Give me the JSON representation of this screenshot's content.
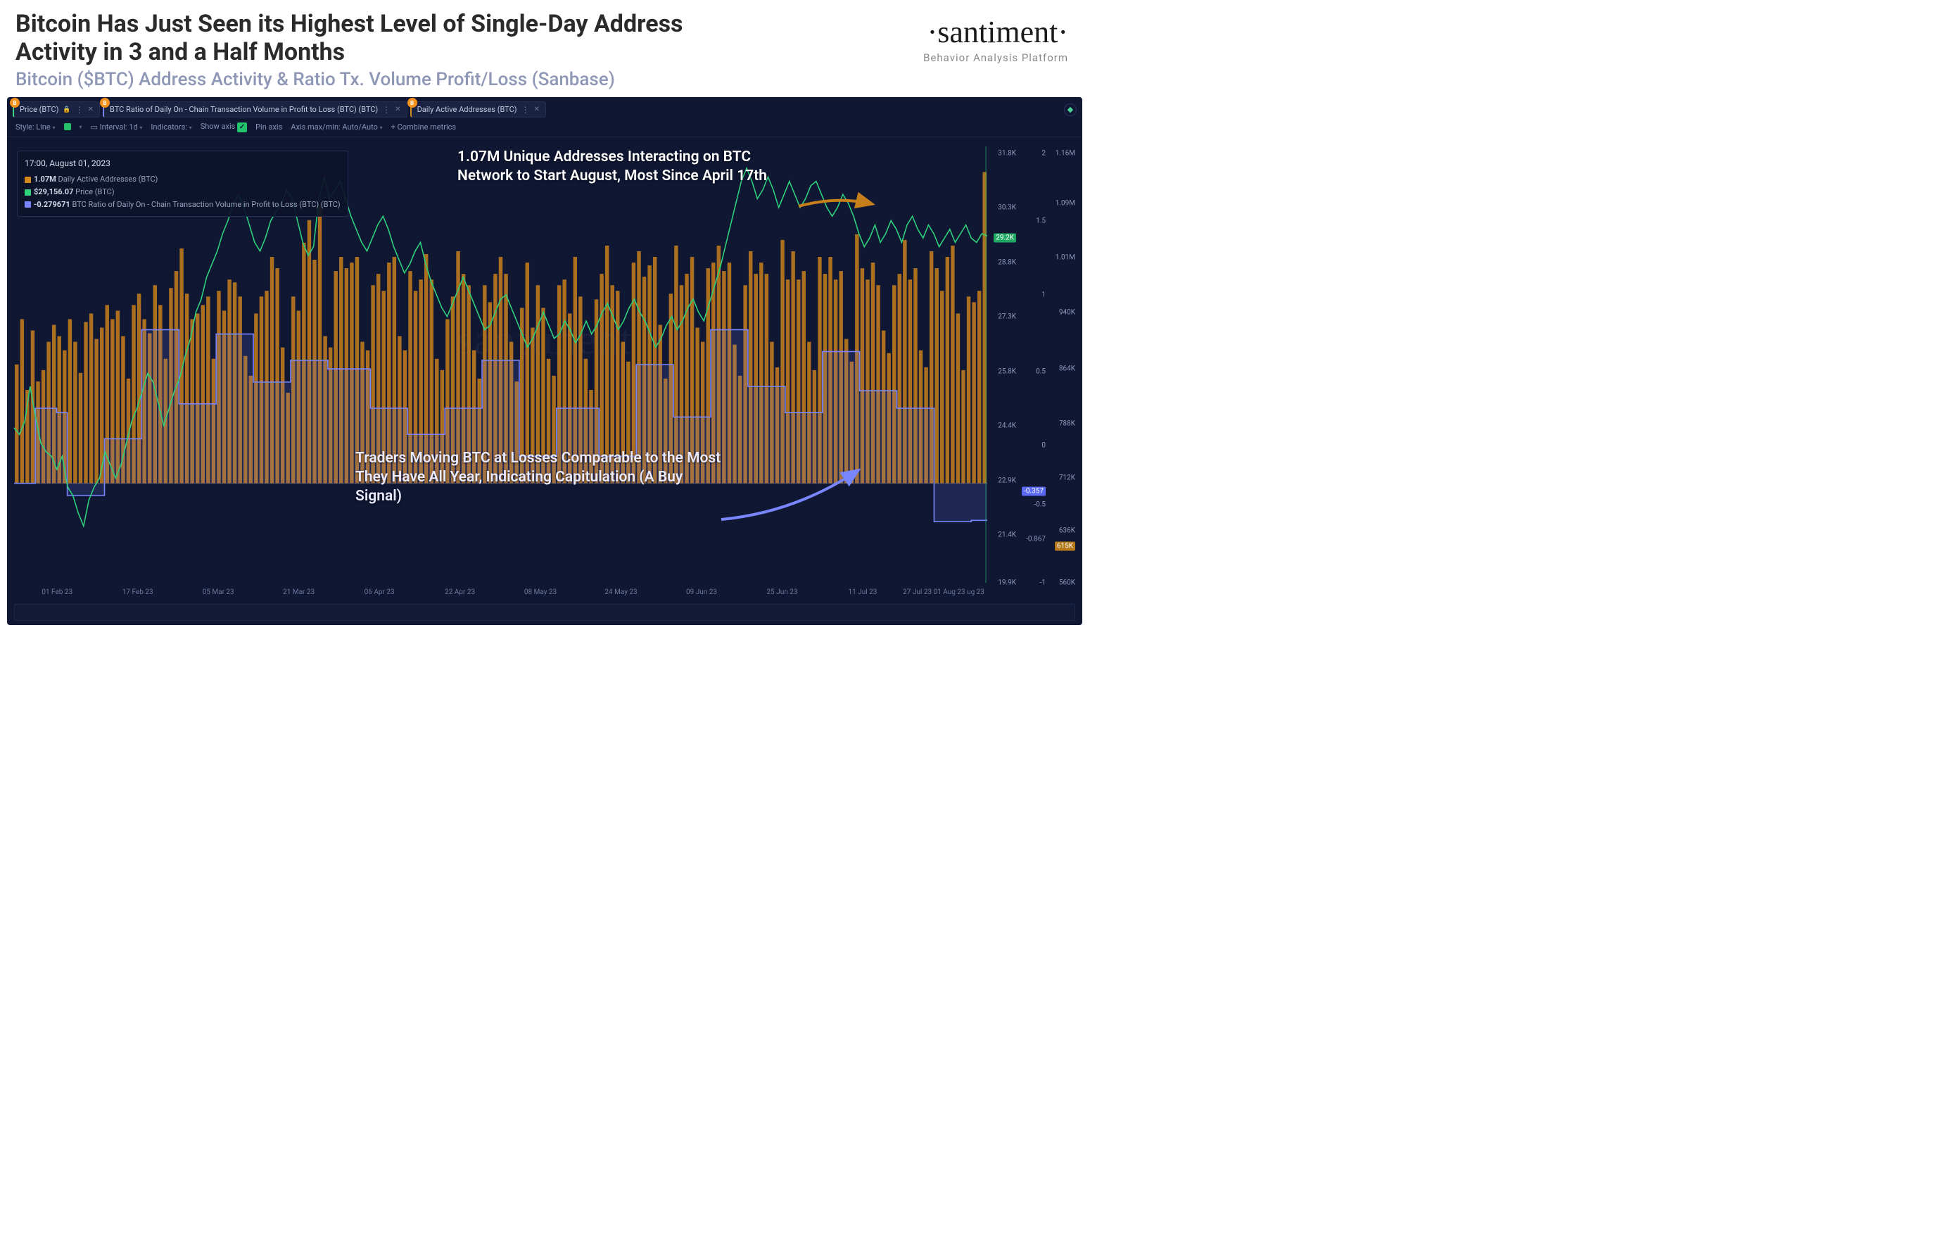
{
  "header": {
    "headline": "Bitcoin Has Just Seen its Highest Level of Single-Day Address Activity in 3 and a Half Months",
    "subhead": "Bitcoin ($BTC) Address Activity & Ratio Tx. Volume Profit/Loss (Sanbase)",
    "logo": "·santiment·",
    "logo_sub": "Behavior Analysis Platform"
  },
  "tabs": {
    "price": "Price (BTC)",
    "ratio": "BTC Ratio of Daily On - Chain Transaction Volume in Profit to Loss (BTC) (BTC)",
    "daa": "Daily Active Addresses (BTC)",
    "badge": "B"
  },
  "controls": {
    "style": "Style: Line",
    "interval_lbl": "Interval: 1d",
    "indicators": "Indicators:",
    "show_axis": "Show axis",
    "pin_axis": "Pin axis",
    "axis_mm": "Axis max/min: Auto/Auto",
    "combine": "+  Combine metrics"
  },
  "tooltip": {
    "time": "17:00, August 01, 2023",
    "r1_val": "1.07M",
    "r1_lbl": "Daily Active Addresses (BTC)",
    "r1_color": "#d28a1a",
    "r2_val": "$29,156.07",
    "r2_lbl": "Price (BTC)",
    "r2_color": "#2fd17c",
    "r3_val": "-0.279671",
    "r3_lbl": "BTC Ratio of Daily On - Chain Transaction Volume in Profit to Loss (BTC) (BTC)",
    "r3_color": "#7a86ff"
  },
  "annotations": {
    "top": "1.07M Unique Addresses Interacting on BTC Network to Start August, Most Since April 17th",
    "bottom": "Traders Moving BTC at Losses Comparable to the Most They Have All Year, Indicating Capitulation (A Buy Signal)"
  },
  "chart": {
    "type": "combo-bar-line-step",
    "background_color": "#0f1733",
    "grid_color": "rgba(80,100,160,0.05)",
    "watermark": "santiment",
    "bars": {
      "color": "#c77f1c",
      "opacity": 0.85,
      "baseline": 0.772,
      "last_highlight_top": 0.06,
      "heights_norm": [
        0.42,
        0.58,
        0.33,
        0.54,
        0.36,
        0.4,
        0.5,
        0.56,
        0.52,
        0.47,
        0.58,
        0.5,
        0.39,
        0.57,
        0.6,
        0.51,
        0.55,
        0.63,
        0.58,
        0.61,
        0.52,
        0.37,
        0.63,
        0.67,
        0.58,
        0.53,
        0.7,
        0.63,
        0.44,
        0.69,
        0.75,
        0.83,
        0.67,
        0.58,
        0.6,
        0.63,
        0.66,
        0.44,
        0.68,
        0.61,
        0.72,
        0.71,
        0.66,
        0.45,
        0.38,
        0.6,
        0.66,
        0.68,
        0.8,
        0.76,
        0.48,
        0.32,
        0.66,
        0.61,
        0.85,
        0.93,
        0.79,
        0.98,
        0.52,
        0.48,
        0.75,
        0.8,
        0.76,
        0.78,
        0.8,
        0.5,
        0.47,
        0.7,
        0.74,
        0.68,
        0.78,
        0.8,
        0.52,
        0.47,
        0.75,
        0.68,
        0.72,
        0.81,
        0.72,
        0.44,
        0.4,
        0.58,
        0.66,
        0.82,
        0.74,
        0.7,
        0.47,
        0.37,
        0.7,
        0.64,
        0.74,
        0.8,
        0.74,
        0.5,
        0.36,
        0.62,
        0.78,
        0.55,
        0.7,
        0.62,
        0.44,
        0.38,
        0.7,
        0.72,
        0.6,
        0.8,
        0.66,
        0.44,
        0.33,
        0.65,
        0.74,
        0.84,
        0.7,
        0.68,
        0.5,
        0.43,
        0.78,
        0.82,
        0.73,
        0.77,
        0.8,
        0.56,
        0.37,
        0.67,
        0.84,
        0.7,
        0.74,
        0.8,
        0.55,
        0.5,
        0.76,
        0.78,
        0.84,
        0.75,
        0.78,
        0.49,
        0.38,
        0.7,
        0.82,
        0.74,
        0.78,
        0.74,
        0.5,
        0.41,
        0.86,
        0.72,
        0.82,
        0.72,
        0.75,
        0.5,
        0.4,
        0.8,
        0.74,
        0.8,
        0.72,
        0.75,
        0.51,
        0.43,
        0.88,
        0.76,
        0.72,
        0.78,
        0.7,
        0.54,
        0.46,
        0.7,
        0.74,
        0.86,
        0.72,
        0.76,
        0.47,
        0.41,
        0.82,
        0.76,
        0.68,
        0.8,
        0.84,
        0.6,
        0.4,
        0.66,
        0.64,
        0.68,
        1.1
      ]
    },
    "price_line": {
      "color": "#2fd17c",
      "width": 1.6,
      "points_norm": [
        0.645,
        0.66,
        0.63,
        0.55,
        0.62,
        0.68,
        0.7,
        0.71,
        0.74,
        0.71,
        0.78,
        0.8,
        0.84,
        0.87,
        0.81,
        0.78,
        0.76,
        0.7,
        0.73,
        0.76,
        0.73,
        0.68,
        0.63,
        0.6,
        0.56,
        0.52,
        0.54,
        0.59,
        0.64,
        0.6,
        0.56,
        0.53,
        0.48,
        0.44,
        0.38,
        0.35,
        0.3,
        0.27,
        0.24,
        0.2,
        0.17,
        0.13,
        0.11,
        0.14,
        0.18,
        0.22,
        0.24,
        0.21,
        0.17,
        0.15,
        0.13,
        0.1,
        0.12,
        0.17,
        0.22,
        0.25,
        0.23,
        0.12,
        0.07,
        0.12,
        0.1,
        0.08,
        0.12,
        0.16,
        0.19,
        0.22,
        0.24,
        0.21,
        0.18,
        0.16,
        0.19,
        0.23,
        0.26,
        0.29,
        0.27,
        0.24,
        0.22,
        0.27,
        0.31,
        0.34,
        0.37,
        0.39,
        0.36,
        0.33,
        0.3,
        0.33,
        0.36,
        0.39,
        0.42,
        0.41,
        0.38,
        0.35,
        0.34,
        0.37,
        0.4,
        0.43,
        0.46,
        0.44,
        0.41,
        0.38,
        0.41,
        0.44,
        0.43,
        0.4,
        0.42,
        0.45,
        0.43,
        0.4,
        0.43,
        0.41,
        0.38,
        0.36,
        0.39,
        0.42,
        0.4,
        0.37,
        0.35,
        0.38,
        0.4,
        0.43,
        0.46,
        0.44,
        0.41,
        0.39,
        0.42,
        0.4,
        0.37,
        0.35,
        0.38,
        0.4,
        0.36,
        0.32,
        0.28,
        0.23,
        0.18,
        0.13,
        0.08,
        0.05,
        0.08,
        0.12,
        0.1,
        0.07,
        0.1,
        0.14,
        0.11,
        0.08,
        0.11,
        0.14,
        0.12,
        0.09,
        0.08,
        0.11,
        0.14,
        0.16,
        0.14,
        0.11,
        0.13,
        0.16,
        0.2,
        0.23,
        0.21,
        0.18,
        0.22,
        0.2,
        0.17,
        0.19,
        0.22,
        0.18,
        0.16,
        0.19,
        0.21,
        0.18,
        0.2,
        0.23,
        0.21,
        0.19,
        0.22,
        0.2,
        0.18,
        0.21,
        0.22,
        0.2,
        0.205
      ],
      "current_tag": "29.2K",
      "current_tag_bg": "#1fa862"
    },
    "ratio_step": {
      "color": "#7a86ff",
      "width": 1.6,
      "fill_opacity": 0.15,
      "baseline": 0.772,
      "points_norm": [
        0.772,
        0.772,
        0.772,
        0.772,
        0.6,
        0.6,
        0.6,
        0.6,
        0.61,
        0.61,
        0.8,
        0.8,
        0.8,
        0.8,
        0.8,
        0.8,
        0.8,
        0.67,
        0.67,
        0.67,
        0.67,
        0.67,
        0.67,
        0.67,
        0.42,
        0.42,
        0.42,
        0.42,
        0.42,
        0.42,
        0.42,
        0.59,
        0.59,
        0.59,
        0.59,
        0.59,
        0.59,
        0.59,
        0.43,
        0.43,
        0.43,
        0.43,
        0.43,
        0.43,
        0.43,
        0.54,
        0.54,
        0.54,
        0.54,
        0.54,
        0.54,
        0.54,
        0.49,
        0.49,
        0.49,
        0.49,
        0.49,
        0.49,
        0.49,
        0.51,
        0.51,
        0.51,
        0.51,
        0.51,
        0.51,
        0.51,
        0.51,
        0.6,
        0.6,
        0.6,
        0.6,
        0.6,
        0.6,
        0.6,
        0.66,
        0.66,
        0.66,
        0.66,
        0.66,
        0.66,
        0.66,
        0.6,
        0.6,
        0.6,
        0.6,
        0.6,
        0.6,
        0.6,
        0.49,
        0.49,
        0.49,
        0.49,
        0.49,
        0.49,
        0.49,
        0.71,
        0.71,
        0.71,
        0.71,
        0.71,
        0.71,
        0.71,
        0.6,
        0.6,
        0.6,
        0.6,
        0.6,
        0.6,
        0.6,
        0.6,
        0.71,
        0.71,
        0.71,
        0.71,
        0.71,
        0.71,
        0.71,
        0.5,
        0.5,
        0.5,
        0.5,
        0.5,
        0.5,
        0.5,
        0.62,
        0.62,
        0.62,
        0.62,
        0.62,
        0.62,
        0.62,
        0.42,
        0.42,
        0.42,
        0.42,
        0.42,
        0.42,
        0.42,
        0.55,
        0.55,
        0.55,
        0.55,
        0.55,
        0.55,
        0.55,
        0.61,
        0.61,
        0.61,
        0.61,
        0.61,
        0.61,
        0.61,
        0.47,
        0.47,
        0.47,
        0.47,
        0.47,
        0.47,
        0.47,
        0.56,
        0.56,
        0.56,
        0.56,
        0.56,
        0.56,
        0.56,
        0.6,
        0.6,
        0.6,
        0.6,
        0.6,
        0.6,
        0.6,
        0.86,
        0.86,
        0.86,
        0.86,
        0.86,
        0.86,
        0.86,
        0.857,
        0.857,
        0.857,
        0.857
      ],
      "current_tag": "-0.357",
      "current_tag_bg": "#5a6af5"
    },
    "x_ticks": [
      "01 Feb 23",
      "17 Feb 23",
      "05 Mar 23",
      "21 Mar 23",
      "06 Apr 23",
      "22 Apr 23",
      "08 May 23",
      "24 May 23",
      "09 Jun 23",
      "25 Jun 23",
      "11 Jul 23",
      "27 Jul 23 01 Aug 23 ug 23"
    ],
    "y_price": {
      "ticks": [
        "31.8K",
        "30.3K",
        "28.8K",
        "27.3K",
        "25.8K",
        "24.4K",
        "22.9K",
        "21.4K",
        "19.9K"
      ],
      "positions": [
        0.015,
        0.14,
        0.265,
        0.39,
        0.515,
        0.64,
        0.765,
        0.89,
        1.0
      ]
    },
    "y_ratio": {
      "ticks": [
        "2",
        "1.5",
        "1",
        "0.5",
        "0",
        "-0.5",
        "-0.867",
        "-1"
      ],
      "positions": [
        0.015,
        0.17,
        0.34,
        0.515,
        0.685,
        0.82,
        0.9,
        1.0
      ]
    },
    "y_daa": {
      "ticks": [
        "1.16M",
        "1.09M",
        "1.01M",
        "940K",
        "864K",
        "788K",
        "712K",
        "636K",
        "615K",
        "560K"
      ],
      "positions": [
        0.015,
        0.13,
        0.255,
        0.38,
        0.51,
        0.635,
        0.76,
        0.88,
        0.915,
        1.0
      ],
      "current_tag": "615K",
      "current_tag_bg": "#b5791a"
    }
  }
}
